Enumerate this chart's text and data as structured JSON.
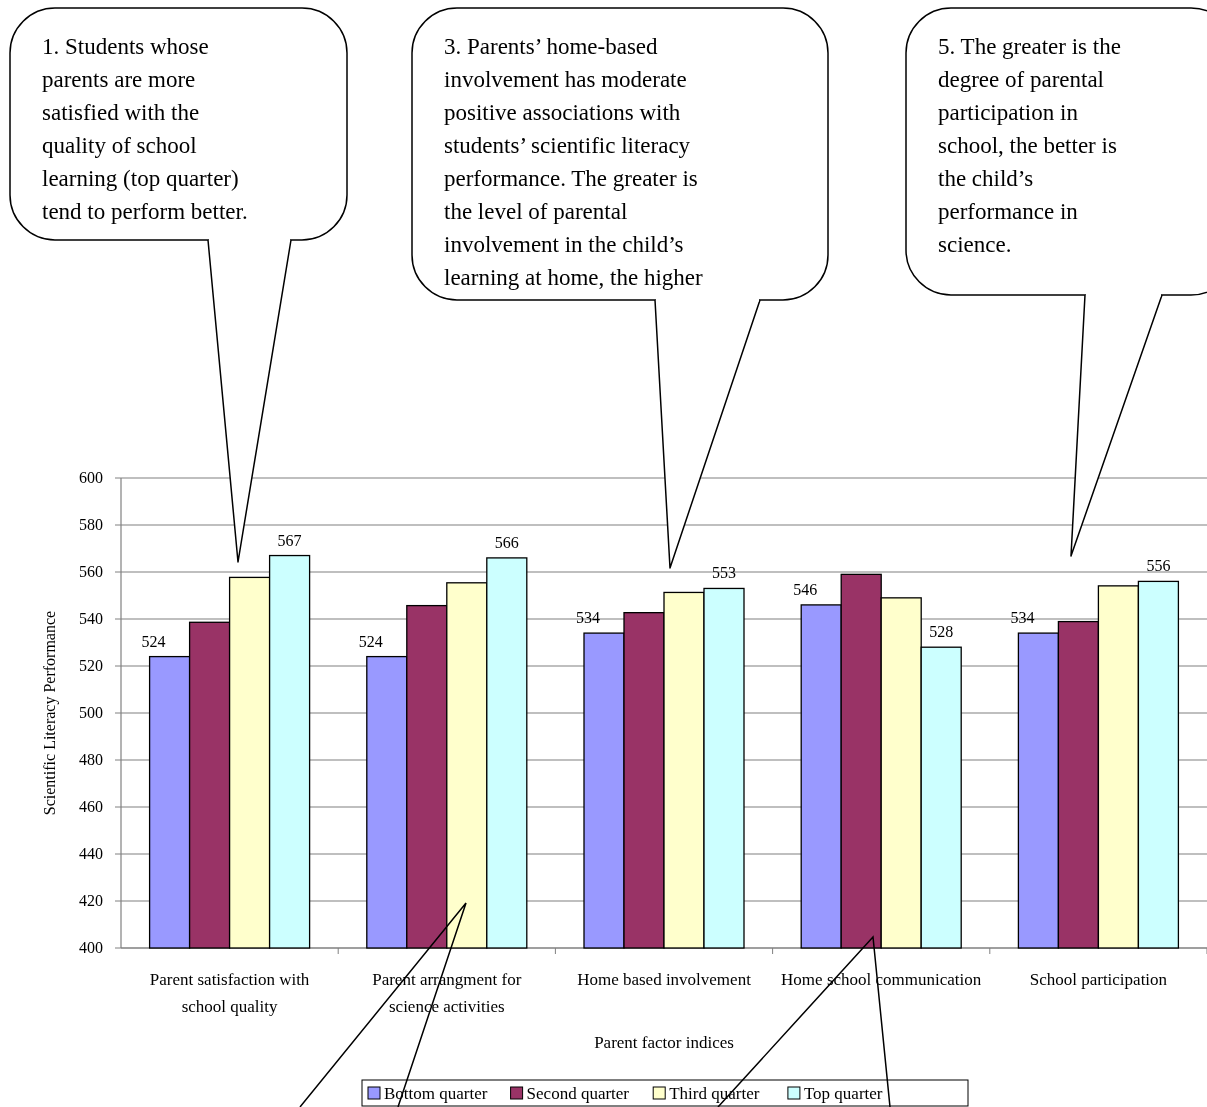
{
  "chart_data": {
    "type": "bar",
    "xlabel": "Parent factor indices",
    "ylabel": "Scientific Literacy Performance",
    "categories": [
      "Parent satisfaction with school quality",
      "Parent arrangment for science activities",
      "Home based involvement",
      "Home school communication",
      "School participation"
    ],
    "series": [
      {
        "name": "Bottom quarter",
        "color": "#9999ff",
        "values": [
          524,
          524,
          534,
          546,
          534
        ],
        "value_labels": [
          "524",
          "524",
          "534",
          "546",
          "534"
        ]
      },
      {
        "name": "Second quarter",
        "color": "#993366",
        "values": [
          538.6,
          545.7,
          542.7,
          559,
          538.9
        ],
        "value_labels": [
          null,
          null,
          null,
          null,
          null
        ]
      },
      {
        "name": "Third quarter",
        "color": "#ffffcc",
        "values": [
          557.7,
          555.4,
          551.3,
          549,
          554.1
        ],
        "value_labels": [
          null,
          null,
          null,
          null,
          null
        ]
      },
      {
        "name": "Top quarter",
        "color": "#ccffff",
        "values": [
          567,
          566,
          553,
          528,
          556
        ],
        "value_labels": [
          "567",
          "566",
          "553",
          "528",
          "556"
        ]
      }
    ],
    "ylim": [
      400,
      600
    ],
    "yticks": [
      400,
      420,
      440,
      460,
      480,
      500,
      520,
      540,
      560,
      580,
      600
    ],
    "grid": "y",
    "legend": "bottom",
    "annotations": [
      "1. Students whose\nparents are more\nsatisfied with the\nquality of school\nlearning (top quarter)\ntend to perform better.",
      "3. Parents’ home-based\ninvolvement has moderate\npositive associations with\nstudents’ scientific literacy\nperformance. The greater is\nthe level of parental\ninvolvement in the child’s\nlearning at home, the higher",
      "5. The greater is the\ndegree of parental\nparticipation in\nschool, the better is\nthe child’s\nperformance in\nscience."
    ]
  }
}
